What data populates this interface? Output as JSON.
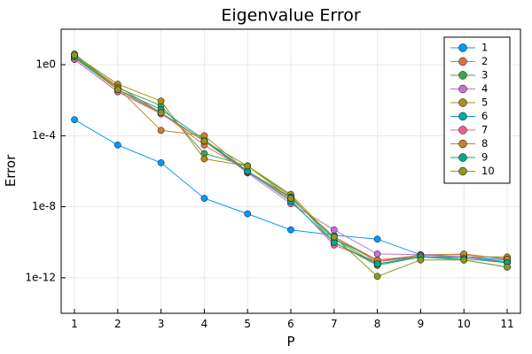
{
  "chart_data": {
    "type": "line",
    "title": "Eigenvalue Error",
    "xlabel": "P",
    "ylabel": "Error",
    "x": [
      1,
      2,
      3,
      4,
      5,
      6,
      7,
      8,
      9,
      10,
      11
    ],
    "x_ticks": [
      "1",
      "2",
      "3",
      "4",
      "5",
      "6",
      "7",
      "8",
      "9",
      "10",
      "11"
    ],
    "y_scale": "log10",
    "ylim": [
      1e-14,
      100.0
    ],
    "y_ticks": [
      {
        "value": 1,
        "label": "1e0"
      },
      {
        "value": 0.0001,
        "label": "1e-4"
      },
      {
        "value": 1e-08,
        "label": "1e-8"
      },
      {
        "value": 1e-12,
        "label": "1e-12"
      }
    ],
    "grid": true,
    "legend_position": "top-right",
    "series": [
      {
        "name": "1",
        "color": "#009AFA",
        "values": [
          0.0008,
          3e-05,
          3e-06,
          3e-08,
          4e-09,
          5e-10,
          2.5e-10,
          1.5e-10,
          2e-11,
          1.5e-11,
          1e-11
        ]
      },
      {
        "name": "2",
        "color": "#E36F47",
        "values": [
          3.0,
          0.06,
          0.002,
          3e-05,
          1e-06,
          3e-08,
          2e-10,
          8e-12,
          2e-11,
          2e-11,
          1.2e-11
        ]
      },
      {
        "name": "3",
        "color": "#3EA44E",
        "values": [
          4.0,
          0.05,
          0.005,
          1e-05,
          2e-06,
          4e-08,
          1e-10,
          5e-12,
          1.5e-11,
          1e-11,
          4e-12
        ]
      },
      {
        "name": "4",
        "color": "#C371D2",
        "values": [
          2.0,
          0.03,
          0.002,
          5e-05,
          8e-07,
          1.5e-08,
          5e-10,
          2.2e-11,
          2e-11,
          2e-11,
          1.2e-11
        ]
      },
      {
        "name": "5",
        "color": "#AC8E18",
        "values": [
          3.5,
          0.08,
          0.009,
          5e-06,
          2e-06,
          5e-08,
          1.5e-10,
          6e-12,
          1.5e-11,
          1.5e-11,
          1.5e-11
        ]
      },
      {
        "name": "6",
        "color": "#00AAAE",
        "values": [
          2.5,
          0.04,
          0.003,
          6e-05,
          1e-06,
          3.5e-08,
          1.5e-10,
          1e-11,
          1.5e-11,
          1.5e-11,
          8e-12
        ]
      },
      {
        "name": "7",
        "color": "#ED5E93",
        "values": [
          2.0,
          0.03,
          0.0017,
          5e-05,
          9e-07,
          2.5e-08,
          7e-11,
          8e-12,
          1.5e-11,
          1.5e-11,
          7e-12
        ]
      },
      {
        "name": "8",
        "color": "#C68225",
        "values": [
          3.0,
          0.05,
          0.0002,
          0.0001,
          1e-06,
          3e-08,
          2e-10,
          1e-11,
          1.8e-11,
          2.2e-11,
          1.1e-11
        ]
      },
      {
        "name": "9",
        "color": "#00A98D",
        "values": [
          2.8,
          0.04,
          0.002,
          5e-05,
          1e-06,
          2e-08,
          1e-10,
          6e-12,
          1.5e-11,
          1.2e-11,
          7e-12
        ]
      },
      {
        "name": "10",
        "color": "#8E971E",
        "values": [
          3.5,
          0.04,
          0.002,
          5e-05,
          2e-06,
          3e-08,
          2e-10,
          1.2e-12,
          1e-11,
          1e-11,
          4e-12
        ]
      }
    ]
  }
}
